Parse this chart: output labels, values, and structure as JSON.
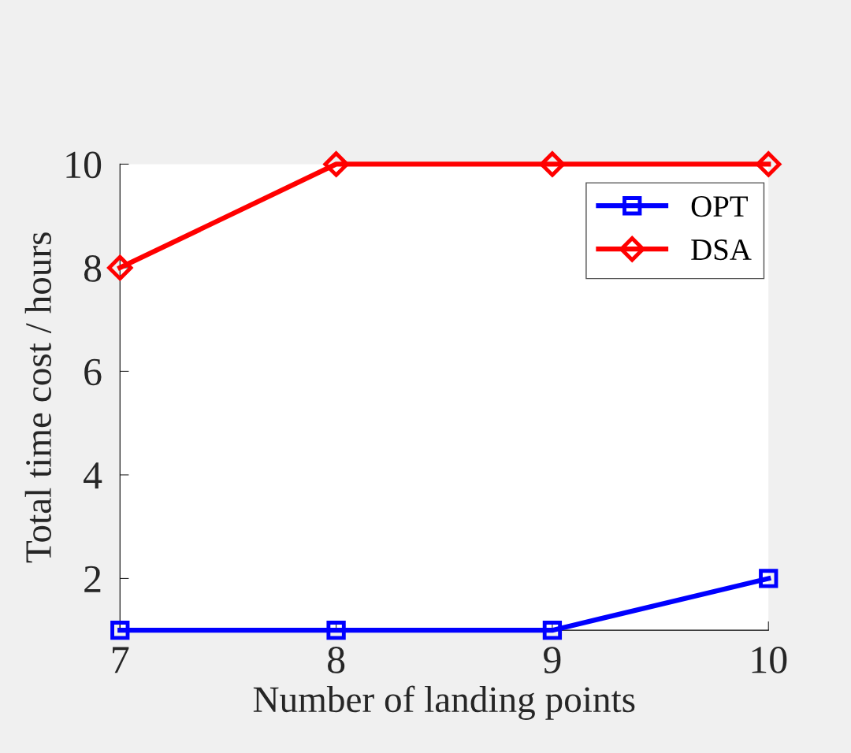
{
  "chart_data": {
    "type": "line",
    "xlabel": "Number of landing points",
    "ylabel": "Total time cost / hours",
    "x": [
      7,
      8,
      9,
      10
    ],
    "series": [
      {
        "name": "OPT",
        "color": "#0000ff",
        "values": [
          1,
          1,
          1,
          2
        ],
        "marker": "square"
      },
      {
        "name": "DSA",
        "color": "#ff0000",
        "values": [
          8,
          10,
          10,
          10
        ],
        "marker": "diamond"
      }
    ],
    "xlim": [
      7,
      10
    ],
    "xticks": [
      7,
      8,
      9,
      10
    ],
    "ylim": [
      1,
      10
    ],
    "yticks": [
      2,
      4,
      6,
      8,
      10
    ],
    "grid": false,
    "legend": "top right",
    "line_style": "solid"
  }
}
